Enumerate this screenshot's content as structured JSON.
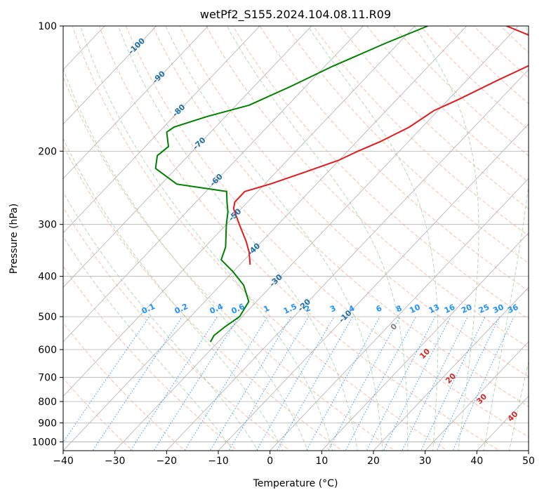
{
  "chart_data": {
    "type": "line",
    "subtype": "skew-t log-p diagram",
    "title": "wetPf2_S155.2024.104.08.11.R09",
    "xlabel": "Temperature (°C)",
    "ylabel": "Pressure (hPa)",
    "xlim": [
      -40,
      50
    ],
    "ylim": [
      1050,
      100
    ],
    "yscale": "log",
    "grid": true,
    "x_ticks": [
      -40,
      -30,
      -20,
      -10,
      0,
      10,
      20,
      30,
      40,
      50
    ],
    "y_ticks": [
      100,
      200,
      300,
      400,
      500,
      600,
      700,
      800,
      900,
      1000
    ],
    "x_tick_labels": [
      "−40",
      "−30",
      "−20",
      "−10",
      "0",
      "10",
      "20",
      "30",
      "40",
      "50"
    ],
    "series": [
      {
        "color": "#e31a1c",
        "points": [
          {
            "p": 100,
            "t": -32.3
          },
          {
            "p": 105,
            "t": -26.5
          },
          {
            "p": 110,
            "t": -22.0
          },
          {
            "p": 118,
            "t": -19.0
          },
          {
            "p": 125,
            "t": -20.8
          },
          {
            "p": 135,
            "t": -24.0
          },
          {
            "p": 150,
            "t": -28.0
          },
          {
            "p": 160,
            "t": -30.8
          },
          {
            "p": 175,
            "t": -32.5
          },
          {
            "p": 190,
            "t": -35.5
          },
          {
            "p": 200,
            "t": -38.0
          },
          {
            "p": 210,
            "t": -40.0
          },
          {
            "p": 225,
            "t": -44.5
          },
          {
            "p": 240,
            "t": -49.0
          },
          {
            "p": 250,
            "t": -52.5
          },
          {
            "p": 265,
            "t": -52.5
          },
          {
            "p": 275,
            "t": -51.5
          },
          {
            "p": 300,
            "t": -47.5
          },
          {
            "p": 330,
            "t": -43.0
          },
          {
            "p": 350,
            "t": -40.5
          },
          {
            "p": 375,
            "t": -38.0
          }
        ]
      },
      {
        "color": "#008000",
        "points": [
          {
            "p": 100,
            "t": -47.5
          },
          {
            "p": 110,
            "t": -52.5
          },
          {
            "p": 125,
            "t": -58.5
          },
          {
            "p": 140,
            "t": -63.0
          },
          {
            "p": 155,
            "t": -67.5
          },
          {
            "p": 165,
            "t": -73.5
          },
          {
            "p": 175,
            "t": -78.0
          },
          {
            "p": 180,
            "t": -78.5
          },
          {
            "p": 195,
            "t": -75.5
          },
          {
            "p": 205,
            "t": -76.0
          },
          {
            "p": 220,
            "t": -74.0
          },
          {
            "p": 240,
            "t": -67.0
          },
          {
            "p": 250,
            "t": -56.0
          },
          {
            "p": 265,
            "t": -54.0
          },
          {
            "p": 280,
            "t": -52.0
          },
          {
            "p": 300,
            "t": -50.0
          },
          {
            "p": 340,
            "t": -46.0
          },
          {
            "p": 365,
            "t": -44.5
          },
          {
            "p": 390,
            "t": -40.0
          },
          {
            "p": 420,
            "t": -35.5
          },
          {
            "p": 460,
            "t": -31.5
          },
          {
            "p": 500,
            "t": -30.5
          },
          {
            "p": 530,
            "t": -31.5
          },
          {
            "p": 555,
            "t": -32.0
          },
          {
            "p": 575,
            "t": -31.5
          }
        ]
      }
    ],
    "isotherm_labels": [
      "-100",
      "-90",
      "-80",
      "-70",
      "-60",
      "-50",
      "-40",
      "-30",
      "-20",
      "-10"
    ],
    "isotherm_label_temps": [
      -100,
      -90,
      -80,
      -70,
      -60,
      -50,
      -40,
      -30,
      -20,
      -10
    ],
    "mixing_ratio_labels": [
      "0.1",
      "0.2",
      "0.4",
      "0.6",
      "1",
      "1.5",
      "2",
      "3",
      "4",
      "6",
      "8",
      "10",
      "13",
      "16",
      "20",
      "25",
      "30",
      "36"
    ],
    "mixing_ratio_values": [
      0.1,
      0.2,
      0.4,
      0.6,
      1,
      1.5,
      2,
      3,
      4,
      6,
      8,
      10,
      13,
      16,
      20,
      25,
      30,
      36
    ],
    "mixing_ratio_label_pressure": 500,
    "adiabat_labels": [
      "0",
      "10",
      "20",
      "30",
      "40"
    ],
    "adiabat_label_points": [
      {
        "p": 530,
        "t": 24
      },
      {
        "p": 615,
        "t": 30
      },
      {
        "p": 705,
        "t": 35
      },
      {
        "p": 790,
        "t": 41
      },
      {
        "p": 870,
        "t": 47
      }
    ],
    "colors": {
      "isotherm_label": "#1f6fa8",
      "mixing_ratio": "#1e90ff",
      "dry_adiabat": "#f4a582",
      "moist_adiabat": "#9acd9a",
      "adiabat_label_red": "#d62728",
      "adiabat_label_gray": "#808080",
      "grid": "#b0b0b0"
    }
  }
}
